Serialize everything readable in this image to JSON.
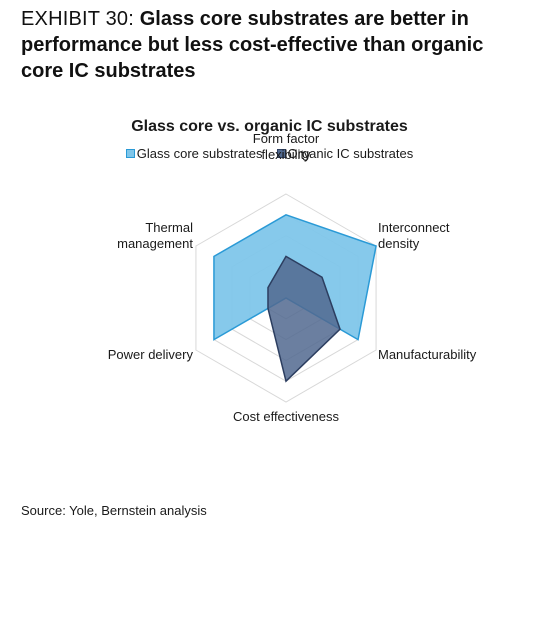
{
  "exhibit": {
    "label": "EXHIBIT 30: ",
    "title": "Glass core substrates are better in performance but less cost-effective than organic core IC substrates"
  },
  "source": "Source: Yole, Bernstein analysis",
  "colors": {
    "glass_fill": "#7fc6ea",
    "glass_stroke": "#2a9ad6",
    "organic_fill": "#51698f",
    "organic_stroke": "#2c3e60",
    "grid": "#d8d8d8"
  },
  "chart_data": {
    "type": "radar",
    "title": "Glass core vs. organic IC substrates",
    "axes": [
      [
        "Form factor",
        "flexibility"
      ],
      [
        "Interconnect",
        "density"
      ],
      [
        "Manufacturability"
      ],
      [
        "Cost effectiveness"
      ],
      [
        "Power delivery"
      ],
      [
        "Thermal",
        "management"
      ]
    ],
    "rings": 5,
    "max": 5,
    "legend_position": "top",
    "series": [
      {
        "name": "Glass core substrates",
        "values": [
          4,
          5,
          4,
          0,
          4,
          4
        ]
      },
      {
        "name": "Organic IC substrates",
        "values": [
          2,
          2,
          3,
          4,
          1,
          1
        ]
      }
    ]
  }
}
